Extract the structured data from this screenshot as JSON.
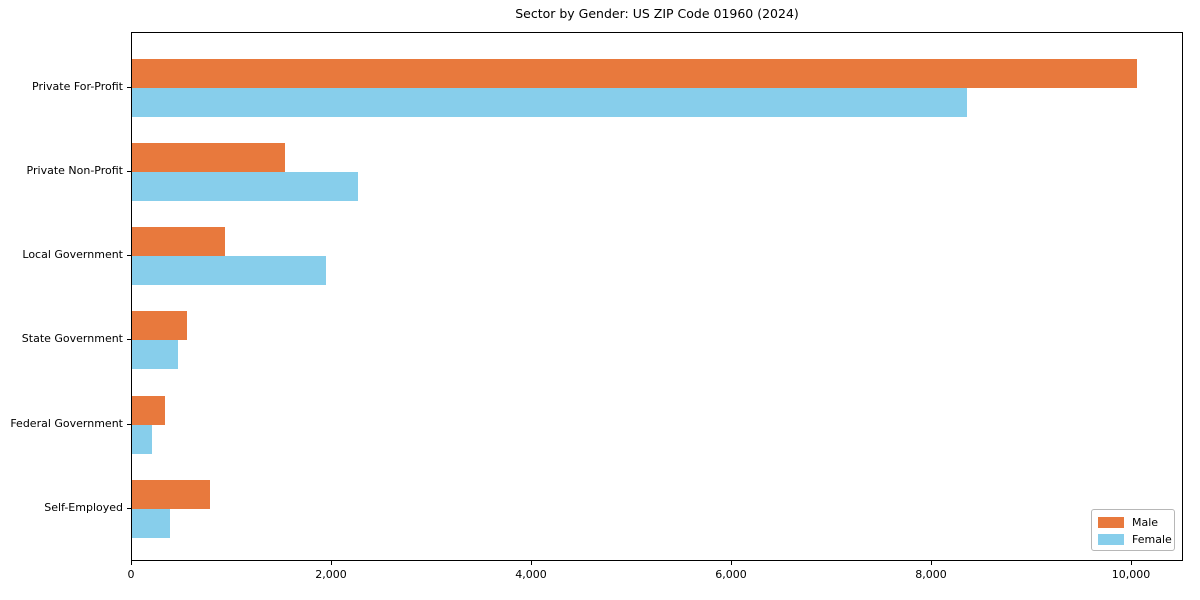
{
  "chart_data": {
    "type": "bar",
    "orientation": "horizontal",
    "title": "Sector by Gender: US ZIP Code 01960 (2024)",
    "xlabel": "",
    "ylabel": "",
    "categories": [
      "Private For-Profit",
      "Private Non-Profit",
      "Local Government",
      "State Government",
      "Federal Government",
      "Self-Employed"
    ],
    "series": [
      {
        "name": "Male",
        "color": "#e8793d",
        "values": [
          10050,
          1530,
          930,
          550,
          330,
          780
        ]
      },
      {
        "name": "Female",
        "color": "#87ceeb",
        "values": [
          8350,
          2260,
          1940,
          460,
          200,
          380
        ]
      }
    ],
    "xlim": [
      0,
      10520
    ],
    "x_ticks": [
      {
        "value": 0,
        "label": "0"
      },
      {
        "value": 2000,
        "label": "2,000"
      },
      {
        "value": 4000,
        "label": "4,000"
      },
      {
        "value": 6000,
        "label": "6,000"
      },
      {
        "value": 8000,
        "label": "8,000"
      },
      {
        "value": 10000,
        "label": "10,000"
      }
    ],
    "grid": false,
    "legend": {
      "position": "lower right",
      "entries": [
        "Male",
        "Female"
      ]
    },
    "axis_color": "#000000",
    "background_color": "#ffffff"
  }
}
